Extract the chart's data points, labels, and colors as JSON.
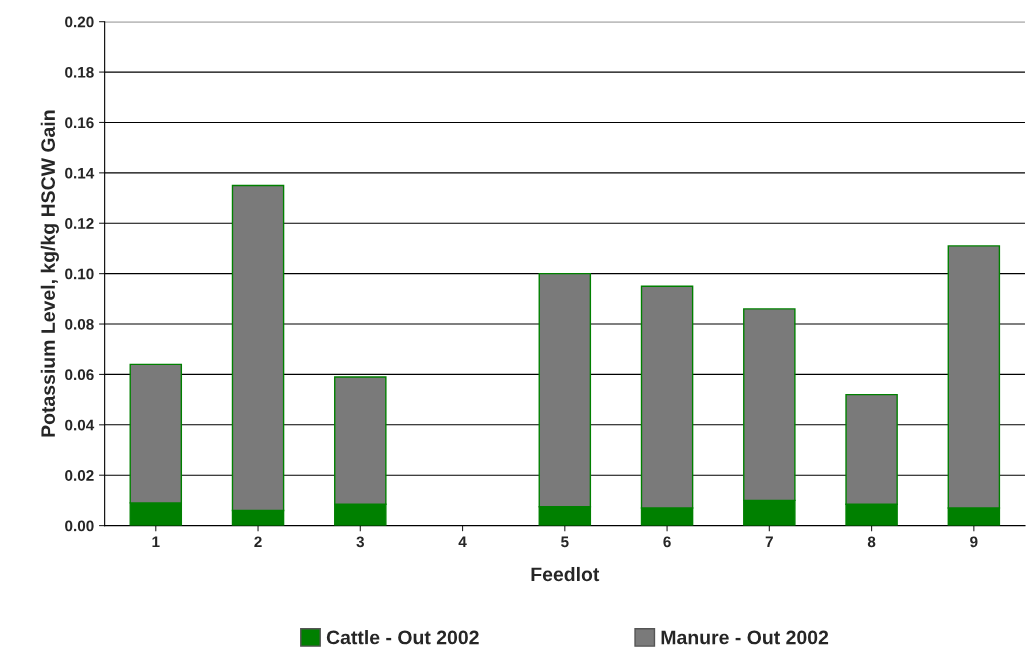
{
  "chart_data": {
    "type": "bar",
    "stacked": true,
    "xlabel": "Feedlot",
    "ylabel": "Potassium Level, kg/kg HSCW Gain",
    "categories": [
      "1",
      "2",
      "3",
      "4",
      "5",
      "6",
      "7",
      "8",
      "9"
    ],
    "series": [
      {
        "name": "Cattle - Out 2002",
        "color": "#008000",
        "values": [
          0.009,
          0.006,
          0.0085,
          null,
          0.0075,
          0.007,
          0.01,
          0.0085,
          0.007
        ]
      },
      {
        "name": "Manure - Out 2002",
        "color": "#7a7a7a",
        "values": [
          0.055,
          0.129,
          0.0505,
          null,
          0.0925,
          0.088,
          0.076,
          0.0435,
          0.104
        ]
      }
    ],
    "ylim": [
      0,
      0.2
    ],
    "yticks": [
      {
        "value": 0,
        "label": "0.00"
      },
      {
        "value": 0.02,
        "label": "0.02"
      },
      {
        "value": 0.04,
        "label": "0.04"
      },
      {
        "value": 0.06,
        "label": "0.06"
      },
      {
        "value": 0.08,
        "label": "0.08"
      },
      {
        "value": 0.1,
        "label": "0.10"
      },
      {
        "value": 0.12,
        "label": "0.12"
      },
      {
        "value": 0.14,
        "label": "0.14"
      },
      {
        "value": 0.16,
        "label": "0.16"
      },
      {
        "value": 0.18,
        "label": "0.18"
      },
      {
        "value": 0.2,
        "label": "0.20"
      }
    ],
    "grid": "y",
    "legend": "bottom"
  }
}
